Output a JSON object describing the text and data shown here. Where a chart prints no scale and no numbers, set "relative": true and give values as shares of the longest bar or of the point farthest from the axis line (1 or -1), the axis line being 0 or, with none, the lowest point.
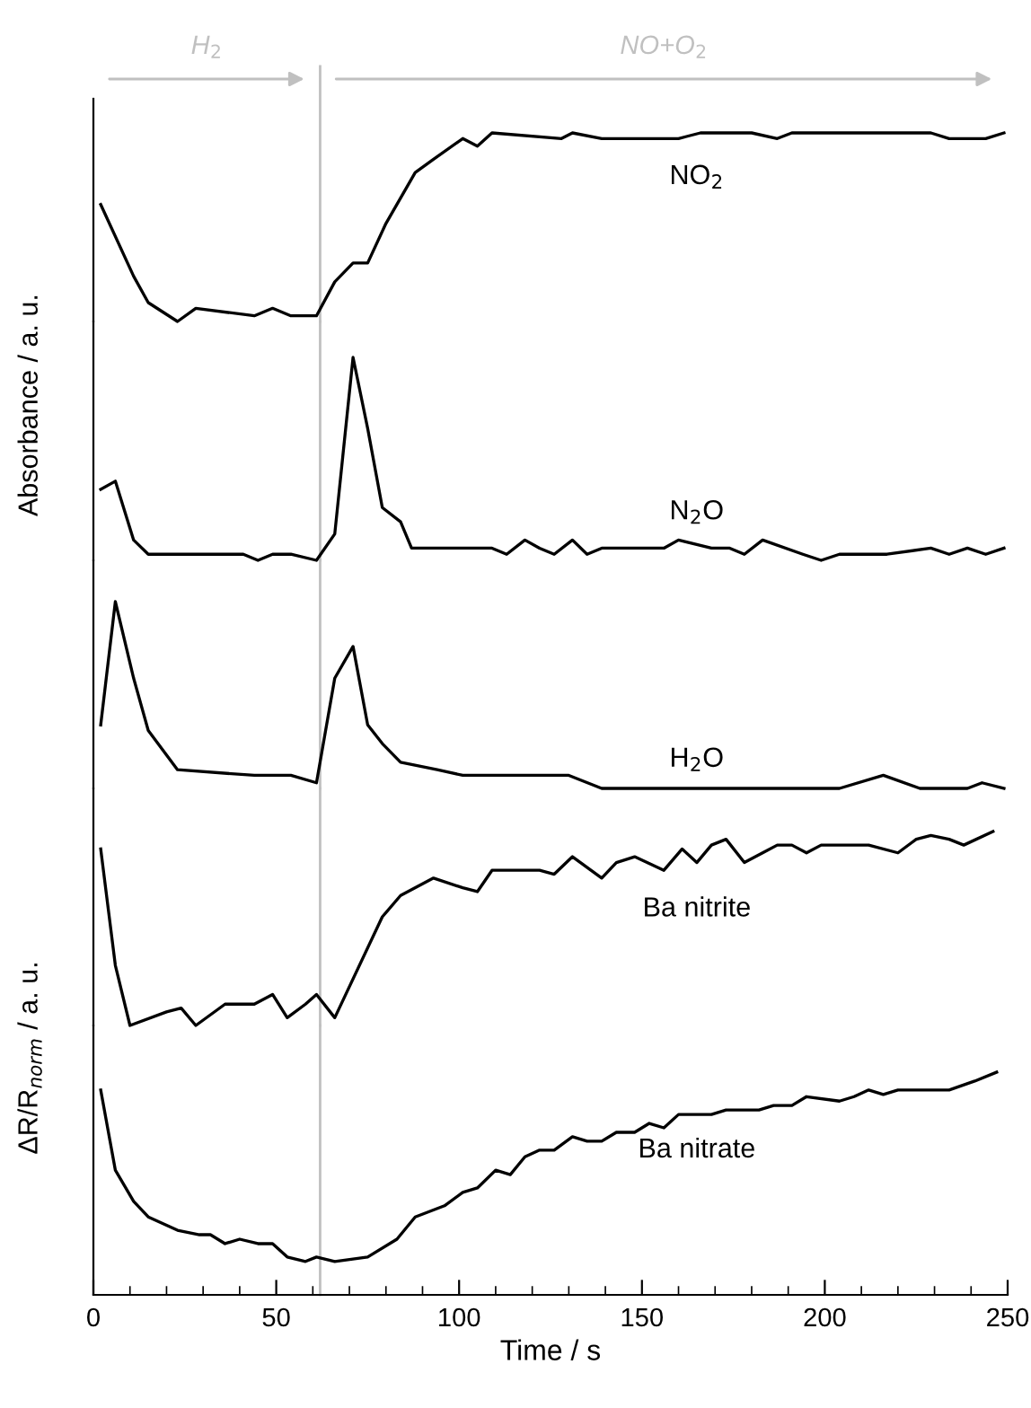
{
  "chart_data": [
    {
      "type": "line",
      "relative": true,
      "xlim": [
        0,
        250
      ],
      "tick_labels": false,
      "annotations": [
        "H$_{2}$",
        "NO+O$_{2}$"
      ],
      "ref_lines": [
        {
          "axis": "x",
          "value": 62,
          "color": "#c0c0c0"
        }
      ],
      "series": [
        {
          "name": "NO$_{2}$",
          "color": "#000000",
          "x": [
            2,
            11,
            15,
            23,
            28,
            44,
            49,
            54,
            61,
            66,
            71,
            75,
            80,
            88,
            93,
            101,
            105,
            109,
            128,
            131,
            139,
            160,
            166,
            180,
            187,
            191,
            205,
            213,
            229,
            234,
            244,
            249
          ],
          "values": [
            0.62,
            0.24,
            0.1,
            0,
            0.07,
            0.03,
            0.07,
            0.03,
            0.03,
            0.21,
            0.31,
            0.31,
            0.52,
            0.79,
            0.86,
            0.97,
            0.93,
            1,
            0.97,
            1,
            0.97,
            0.97,
            1,
            1,
            0.97,
            1,
            1,
            1,
            1,
            0.97,
            0.97,
            1
          ]
        }
      ]
    },
    {
      "type": "line",
      "relative": true,
      "ylabel": "Absorbance / a. u.",
      "xlim": [
        0,
        250
      ],
      "tick_labels": false,
      "ref_lines": [
        {
          "axis": "x",
          "value": 62,
          "color": "#c0c0c0"
        }
      ],
      "series": [
        {
          "name": "N$_{2}$O",
          "color": "#000000",
          "x": [
            2,
            6,
            11,
            15,
            29,
            36,
            41,
            45,
            49,
            54,
            61,
            66,
            71,
            75,
            79,
            84,
            87,
            109,
            113,
            118,
            122,
            126,
            131,
            135,
            139,
            156,
            160,
            169,
            174,
            178,
            183,
            194,
            199,
            204,
            208,
            217,
            229,
            234,
            239,
            244,
            249
          ],
          "values": [
            0.35,
            0.39,
            0.1,
            0.03,
            0.03,
            0.03,
            0.03,
            0,
            0.03,
            0.03,
            0,
            0.13,
            1,
            0.65,
            0.26,
            0.19,
            0.06,
            0.06,
            0.03,
            0.1,
            0.06,
            0.03,
            0.1,
            0.03,
            0.06,
            0.06,
            0.1,
            0.06,
            0.06,
            0.03,
            0.1,
            0.03,
            0,
            0.03,
            0.03,
            0.03,
            0.06,
            0.03,
            0.06,
            0.03,
            0.06
          ]
        }
      ]
    },
    {
      "type": "line",
      "relative": true,
      "xlim": [
        0,
        250
      ],
      "tick_labels": false,
      "ref_lines": [
        {
          "axis": "x",
          "value": 62,
          "color": "#c0c0c0"
        }
      ],
      "series": [
        {
          "name": "H$_{2}$O",
          "color": "#000000",
          "x": [
            2,
            6,
            11,
            15,
            23,
            44,
            49,
            54,
            61,
            66,
            71,
            75,
            79,
            84,
            94,
            101,
            114,
            130,
            139,
            161,
            174,
            194,
            204,
            216,
            226,
            234,
            239,
            243,
            249
          ],
          "values": [
            0.34,
            1,
            0.59,
            0.31,
            0.1,
            0.07,
            0.07,
            0.07,
            0.03,
            0.59,
            0.76,
            0.34,
            0.24,
            0.14,
            0.1,
            0.07,
            0.07,
            0.07,
            0,
            0,
            0,
            0,
            0,
            0.07,
            0,
            0,
            0,
            0.03,
            0
          ]
        }
      ]
    },
    {
      "type": "line",
      "relative": true,
      "xlim": [
        0,
        250
      ],
      "tick_labels": false,
      "ref_lines": [
        {
          "axis": "x",
          "value": 62,
          "color": "#c0c0c0"
        }
      ],
      "series": [
        {
          "name": "Ba nitrite",
          "color": "#000000",
          "x": [
            2,
            6,
            10,
            20,
            24,
            28,
            36,
            44,
            49,
            53,
            58,
            61,
            66,
            79,
            84,
            93,
            101,
            105,
            109,
            122,
            126,
            131,
            139,
            143,
            148,
            156,
            161,
            165,
            169,
            173,
            178,
            183,
            187,
            191,
            195,
            199,
            208,
            212,
            220,
            225,
            229,
            234,
            238,
            246
          ],
          "values": [
            0.91,
            0.31,
            0,
            0.07,
            0.09,
            0,
            0.11,
            0.11,
            0.16,
            0.04,
            0.11,
            0.16,
            0.04,
            0.56,
            0.67,
            0.76,
            0.71,
            0.69,
            0.8,
            0.8,
            0.78,
            0.87,
            0.76,
            0.84,
            0.87,
            0.8,
            0.91,
            0.84,
            0.93,
            0.96,
            0.84,
            0.89,
            0.93,
            0.93,
            0.89,
            0.93,
            0.93,
            0.93,
            0.89,
            0.96,
            0.98,
            0.96,
            0.93,
            1
          ]
        }
      ]
    },
    {
      "type": "line",
      "relative": true,
      "ylabel": "ΔR/R$_{norm}$ / a. u.",
      "xlabel": "Time / s",
      "xlim": [
        0,
        250
      ],
      "xticks": [
        0,
        50,
        100,
        150,
        200,
        250
      ],
      "tick_labels": "x",
      "ref_lines": [
        {
          "axis": "x",
          "value": 62,
          "color": "#c0c0c0"
        }
      ],
      "series": [
        {
          "name": "Ba nitrate",
          "color": "#000000",
          "x": [
            2,
            6,
            11,
            15,
            23,
            29,
            32,
            36,
            40,
            45,
            49,
            53,
            58,
            61,
            66,
            75,
            83,
            88,
            96,
            101,
            105,
            110,
            114,
            118,
            122,
            126,
            131,
            135,
            139,
            143,
            148,
            152,
            156,
            160,
            169,
            173,
            178,
            182,
            186,
            191,
            195,
            204,
            208,
            212,
            216,
            220,
            229,
            234,
            241,
            247
          ],
          "values": [
            0.92,
            0.56,
            0.42,
            0.35,
            0.29,
            0.27,
            0.27,
            0.23,
            0.25,
            0.23,
            0.23,
            0.17,
            0.15,
            0.17,
            0.15,
            0.17,
            0.25,
            0.35,
            0.4,
            0.46,
            0.48,
            0.56,
            0.54,
            0.62,
            0.65,
            0.65,
            0.71,
            0.69,
            0.69,
            0.73,
            0.73,
            0.77,
            0.75,
            0.81,
            0.81,
            0.83,
            0.83,
            0.83,
            0.85,
            0.85,
            0.89,
            0.87,
            0.89,
            0.92,
            0.9,
            0.92,
            0.92,
            0.92,
            0.96,
            1.0
          ]
        }
      ]
    }
  ]
}
